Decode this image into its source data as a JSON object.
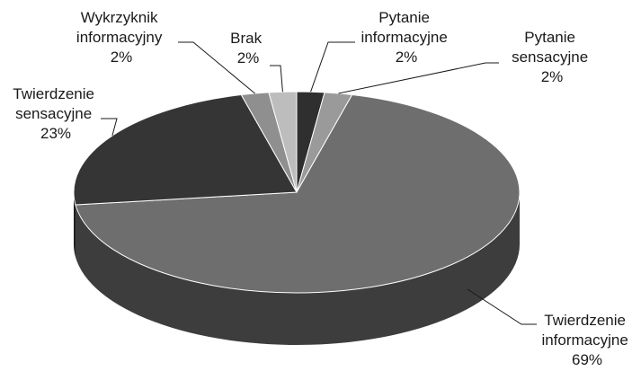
{
  "chart_data": {
    "type": "pie",
    "style": "3d",
    "title": "",
    "slices": [
      {
        "label_lines": [
          "Pytanie",
          "informacyjne"
        ],
        "value_label": "2%",
        "value": 2,
        "color": "#2f2f2f"
      },
      {
        "label_lines": [
          "Pytanie",
          "sensacyjne"
        ],
        "value_label": "2%",
        "value": 2,
        "color": "#9a9a9a"
      },
      {
        "label_lines": [
          "Twierdzenie",
          "informacyjne"
        ],
        "value_label": "69%",
        "value": 69,
        "color": "#6e6e6e"
      },
      {
        "label_lines": [
          "Twierdzenie",
          "sensacyjne"
        ],
        "value_label": "23%",
        "value": 23,
        "color": "#353535"
      },
      {
        "label_lines": [
          "Wykrzyknik",
          "informacyjny"
        ],
        "value_label": "2%",
        "value": 2,
        "color": "#8f8f8f"
      },
      {
        "label_lines": [
          "Brak"
        ],
        "value_label": "2%",
        "value": 2,
        "color": "#bdbdbd"
      }
    ]
  }
}
